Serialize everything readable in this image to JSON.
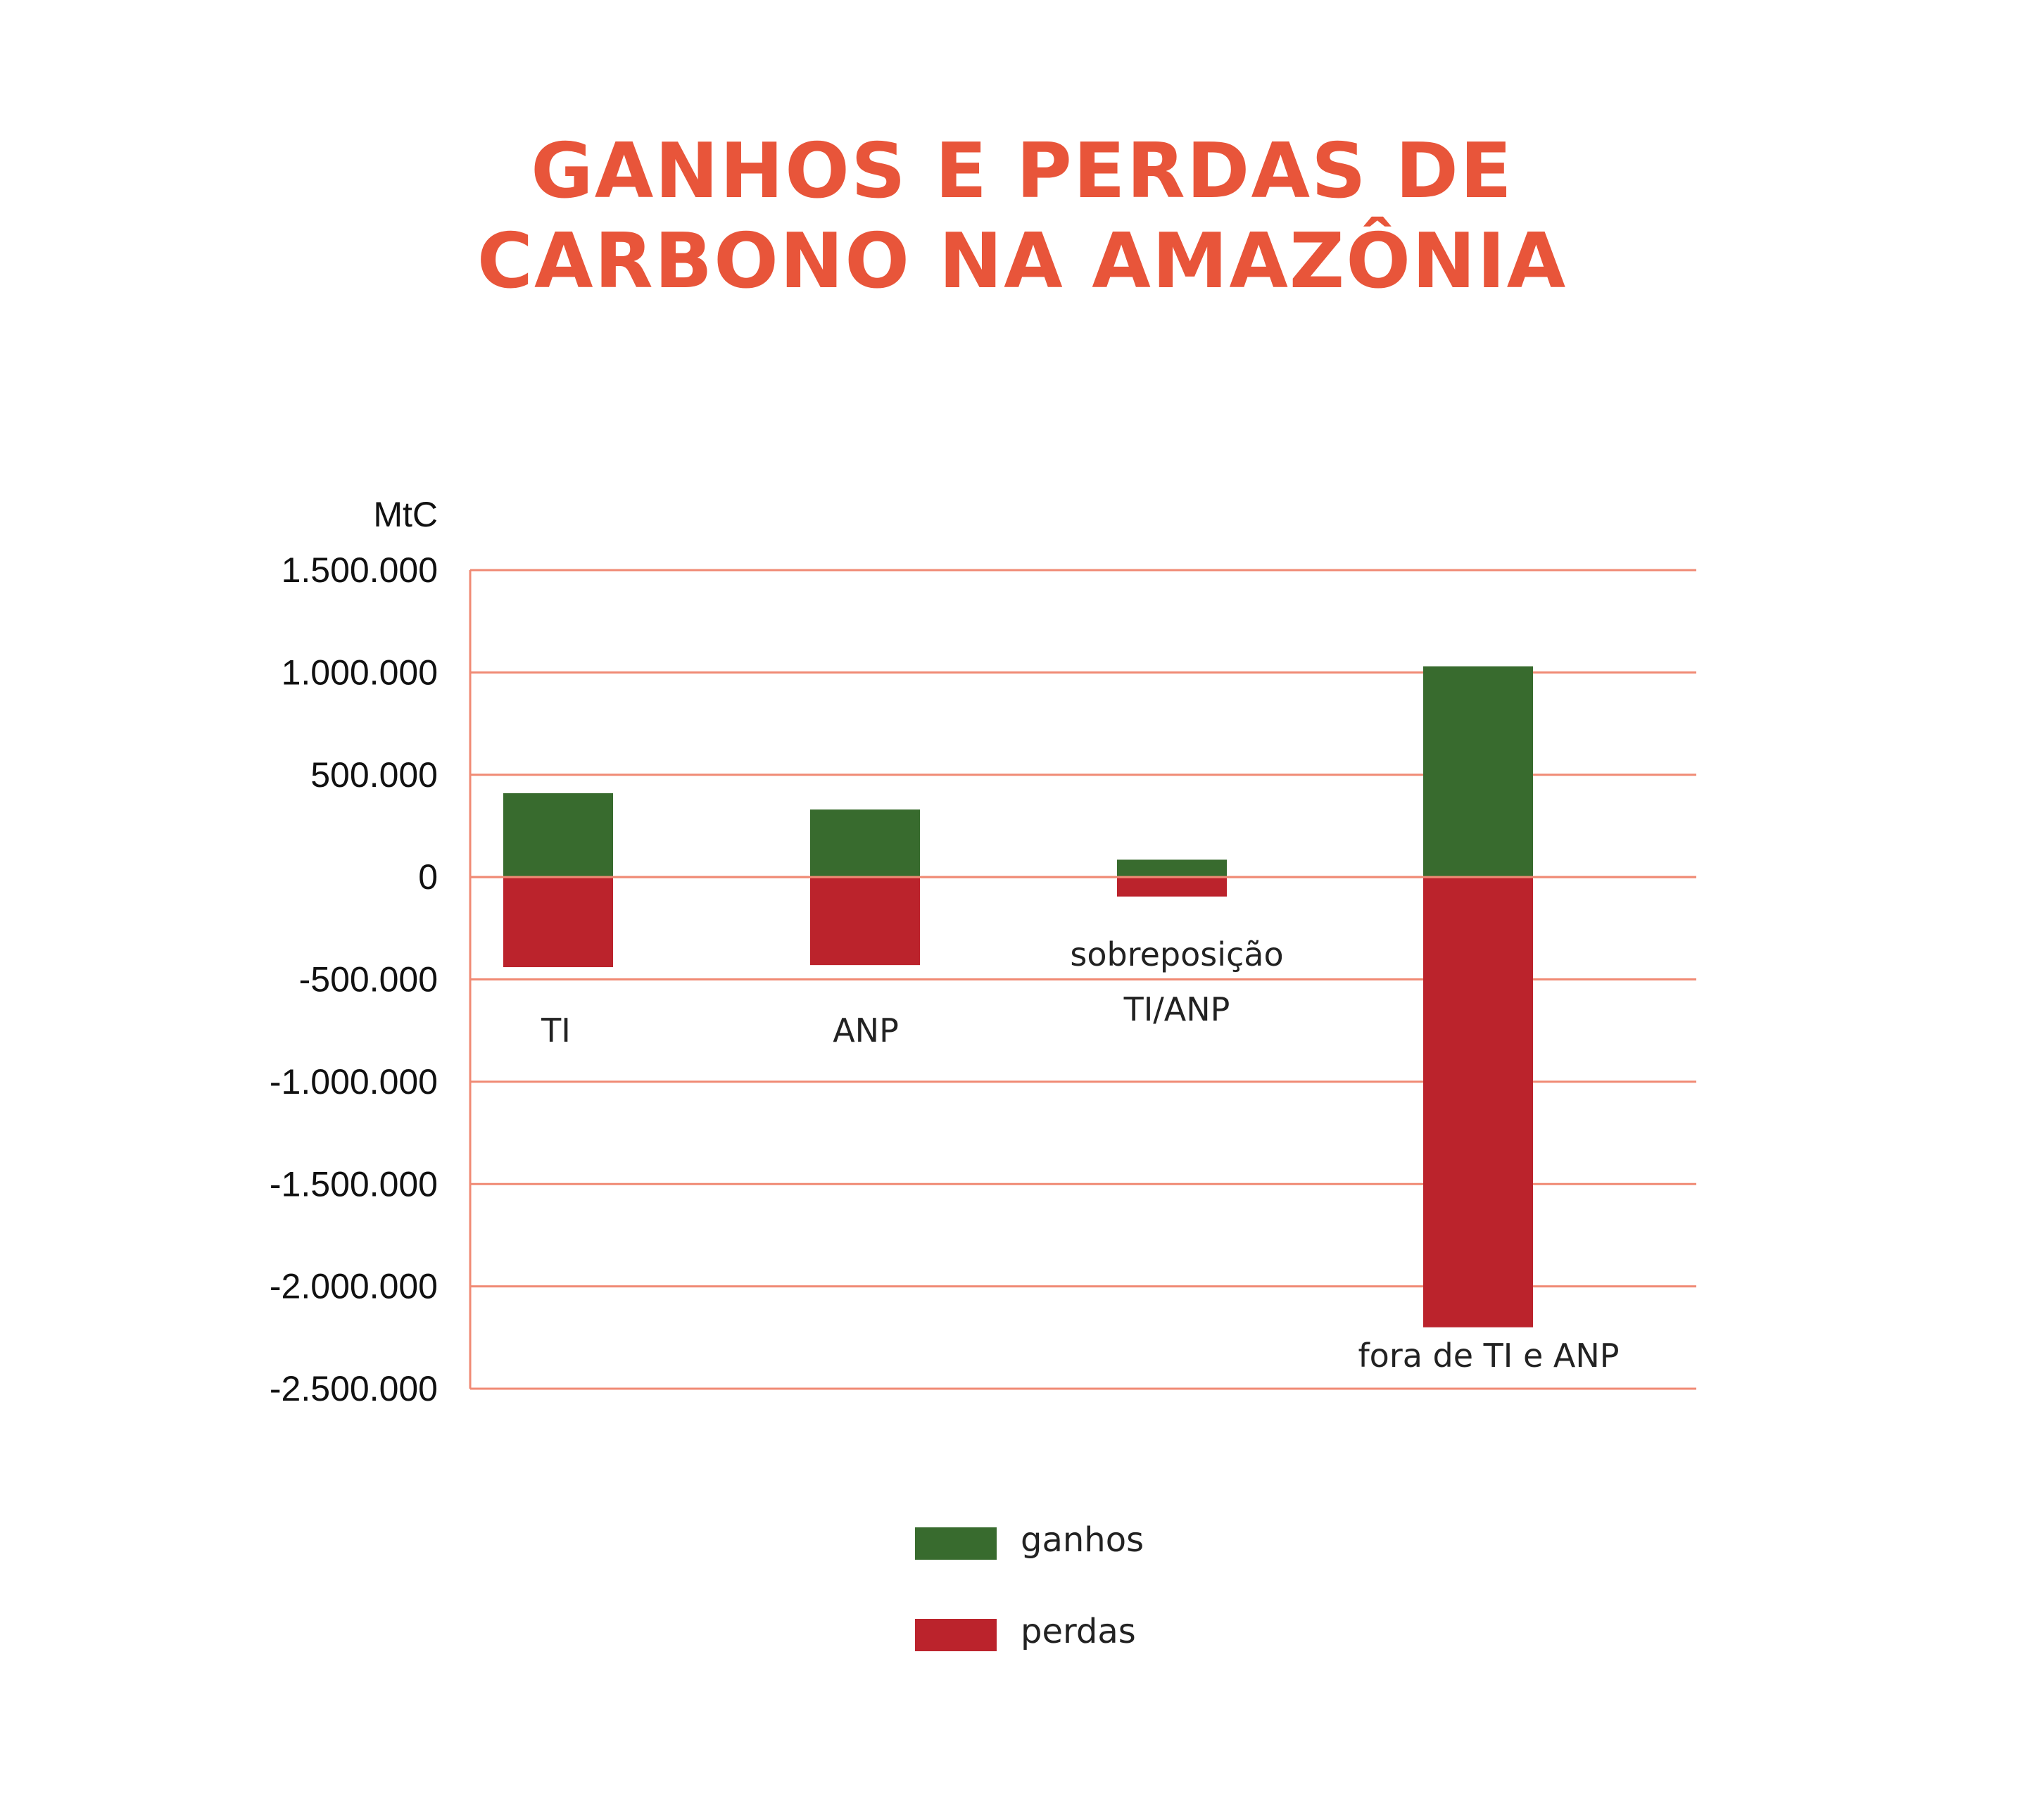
{
  "title": {
    "line1": "GANHOS E PERDAS DE",
    "line2": "CARBONO NA AMAZÔNIA"
  },
  "colors": {
    "title": "#e8553a",
    "gridline": "#f08a74",
    "ganhos": "#386b2e",
    "perdas": "#bb232c"
  },
  "chart_data": {
    "type": "bar",
    "stacked": true,
    "ylabel": "MtC",
    "ylim": [
      -2500000,
      1500000
    ],
    "yticks": [
      1500000,
      1000000,
      500000,
      0,
      -500000,
      -1000000,
      -1500000,
      -2000000,
      -2500000
    ],
    "ytick_labels": [
      "1.500.000",
      "1.000.000",
      "500.000",
      "0",
      "-500.000",
      "-1.000.000",
      "-1.500.000",
      "-2.000.000",
      "-2.500.000"
    ],
    "grid": true,
    "categories": [
      "TI",
      "ANP",
      "sobreposição TI/ANP",
      "fora de TI e ANP"
    ],
    "category_label_lines": [
      [
        "TI"
      ],
      [
        "ANP"
      ],
      [
        "sobreposição",
        "TI/ANP"
      ],
      [
        "fora de TI e ANP"
      ]
    ],
    "series": [
      {
        "name": "ganhos",
        "values": [
          410000,
          330000,
          85000,
          1030000
        ]
      },
      {
        "name": "perdas",
        "values": [
          -440000,
          -430000,
          -95000,
          -2200000
        ]
      }
    ],
    "legend_placement": "bottom-center"
  },
  "legend": [
    {
      "label": "ganhos",
      "color": "#386b2e"
    },
    {
      "label": "perdas",
      "color": "#bb232c"
    }
  ]
}
